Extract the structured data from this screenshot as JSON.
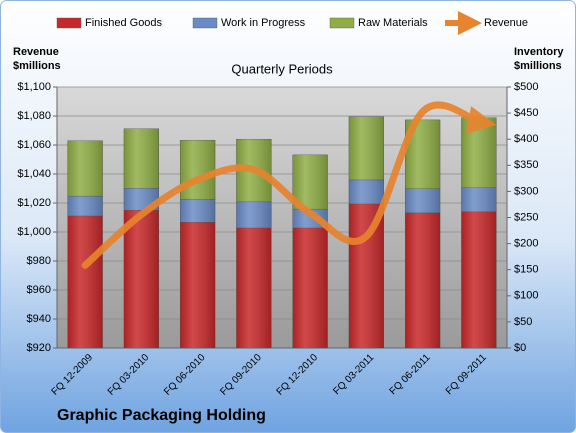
{
  "chart_data": {
    "type": "bar",
    "title": "Graphic Packaging Holding",
    "subtitle": "Quarterly Periods",
    "ylabel": [
      "Revenue",
      "$millions"
    ],
    "y2label": [
      "Inventory",
      "$millions"
    ],
    "categories": [
      "FQ 12-2009",
      "FQ 03-2010",
      "FQ 06-2010",
      "FQ 09-2010",
      "FQ 12-2010",
      "FQ 03-2011",
      "FQ 06-2011",
      "FQ 09-2011"
    ],
    "series": [
      {
        "name": "Finished Goods",
        "type": "bar",
        "axis": "y2",
        "color": "#c8282a",
        "values": [
          253,
          264,
          241,
          230,
          230,
          276,
          259,
          261
        ]
      },
      {
        "name": "Work in Progress",
        "type": "bar",
        "axis": "y2",
        "color": "#6a8cc6",
        "values": [
          38,
          42,
          44,
          50,
          36,
          46,
          46,
          46
        ]
      },
      {
        "name": "Raw Materials",
        "type": "bar",
        "axis": "y2",
        "color": "#8fae45",
        "values": [
          106,
          114,
          113,
          120,
          104,
          121,
          132,
          134
        ]
      },
      {
        "name": "Revenue",
        "type": "line",
        "axis": "y",
        "color": "#e8832e",
        "values": [
          977,
          1012,
          1036,
          1043,
          1013,
          997,
          1083,
          1076
        ]
      }
    ],
    "ylim": [
      920,
      1100
    ],
    "yticks": [
      {
        "value": 920,
        "label": "$920"
      },
      {
        "value": 940,
        "label": "$940"
      },
      {
        "value": 960,
        "label": "$960"
      },
      {
        "value": 980,
        "label": "$980"
      },
      {
        "value": 1000,
        "label": "$1,000"
      },
      {
        "value": 1020,
        "label": "$1,020"
      },
      {
        "value": 1040,
        "label": "$1,040"
      },
      {
        "value": 1060,
        "label": "$1,060"
      },
      {
        "value": 1080,
        "label": "$1,080"
      },
      {
        "value": 1100,
        "label": "$1,100"
      }
    ],
    "y2lim": [
      0,
      500
    ],
    "y2ticks": [
      {
        "value": 0,
        "label": "$0"
      },
      {
        "value": 50,
        "label": "$50"
      },
      {
        "value": 100,
        "label": "$100"
      },
      {
        "value": 150,
        "label": "$150"
      },
      {
        "value": 200,
        "label": "$200"
      },
      {
        "value": 250,
        "label": "$250"
      },
      {
        "value": 300,
        "label": "$300"
      },
      {
        "value": 350,
        "label": "$350"
      },
      {
        "value": 400,
        "label": "$400"
      },
      {
        "value": 450,
        "label": "$450"
      },
      {
        "value": 500,
        "label": "$500"
      }
    ],
    "legend": "top"
  }
}
